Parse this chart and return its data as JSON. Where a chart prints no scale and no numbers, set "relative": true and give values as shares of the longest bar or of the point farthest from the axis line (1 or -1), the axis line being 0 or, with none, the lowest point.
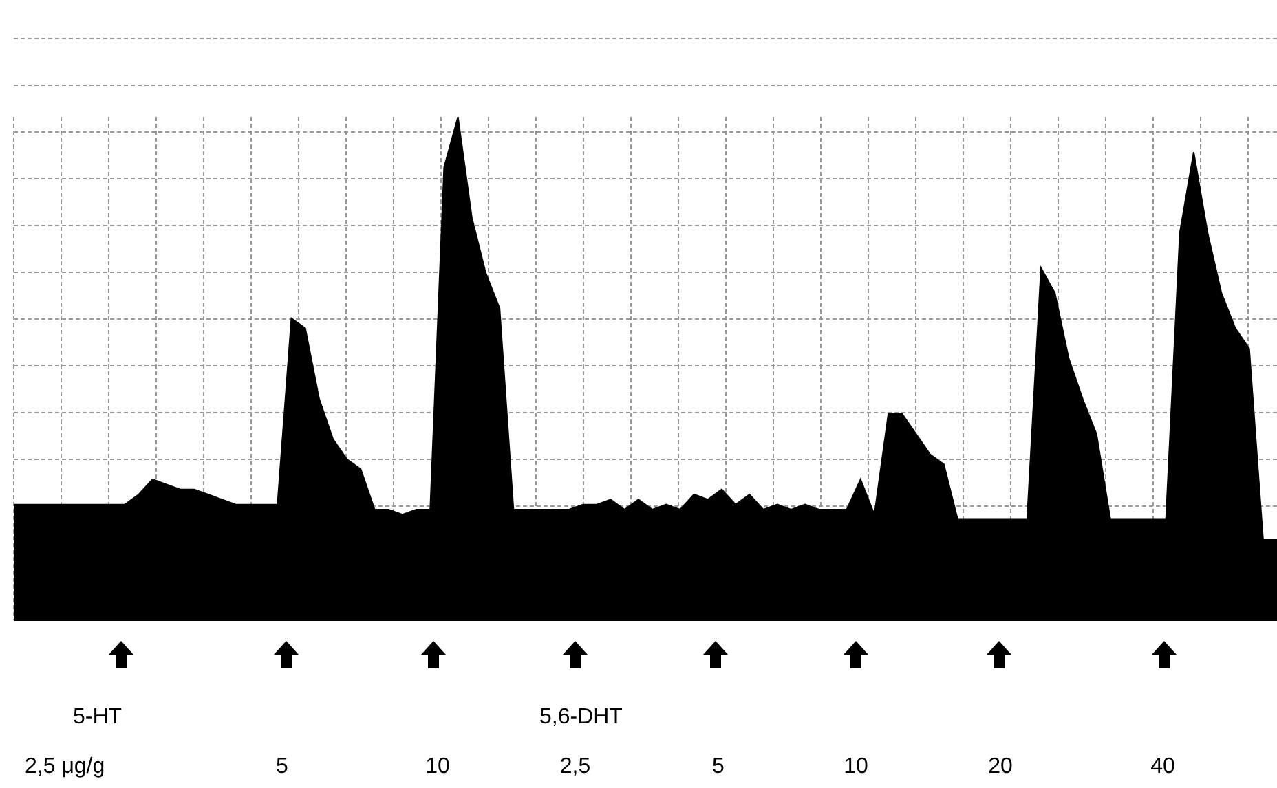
{
  "chart_data": {
    "type": "area",
    "relative": true,
    "grid": true,
    "color": "#000000",
    "categories": [
      null,
      null,
      null,
      null,
      null,
      null,
      null,
      null,
      null,
      null,
      null,
      null,
      null,
      null,
      null,
      null,
      null,
      null,
      null,
      null,
      null,
      null,
      null,
      null,
      null,
      null,
      null,
      null,
      null,
      null,
      null,
      null,
      null,
      null,
      null,
      null,
      null,
      null,
      null,
      null,
      null,
      null,
      null,
      null,
      null,
      null,
      null,
      null,
      null,
      null,
      null,
      null,
      null,
      null,
      null,
      null,
      null,
      null,
      null,
      null,
      null,
      null,
      null,
      null,
      null,
      null,
      null,
      null,
      null,
      null,
      null,
      null,
      null,
      null,
      null,
      null,
      null,
      null,
      null,
      null,
      null,
      null,
      null,
      null,
      null,
      null,
      null,
      null,
      null,
      null,
      null,
      null
    ],
    "values": [
      0.23,
      0.23,
      0.23,
      0.23,
      0.23,
      0.23,
      0.23,
      0.23,
      0.23,
      0.25,
      0.28,
      0.27,
      0.26,
      0.26,
      0.25,
      0.24,
      0.23,
      0.23,
      0.23,
      0.23,
      0.6,
      0.58,
      0.44,
      0.36,
      0.32,
      0.3,
      0.22,
      0.22,
      0.21,
      0.22,
      0.22,
      0.9,
      1,
      0.8,
      0.69,
      0.62,
      0.22,
      0.22,
      0.22,
      0.22,
      0.22,
      0.23,
      0.23,
      0.24,
      0.22,
      0.24,
      0.22,
      0.23,
      0.22,
      0.25,
      0.24,
      0.26,
      0.23,
      0.25,
      0.22,
      0.23,
      0.22,
      0.23,
      0.22,
      0.22,
      0.22,
      0.28,
      0.21,
      0.41,
      0.41,
      0.37,
      0.33,
      0.31,
      0.2,
      0.2,
      0.2,
      0.2,
      0.2,
      0.2,
      0.7,
      0.65,
      0.52,
      0.44,
      0.37,
      0.2,
      0.2,
      0.2,
      0.2,
      0.2,
      0.77,
      0.93,
      0.77,
      0.65,
      0.58,
      0.54,
      0.16,
      0.16
    ],
    "annotations": [
      "5-HT",
      "5,6-DHT",
      "2,5 μg/g",
      "5",
      "10",
      "2,5",
      "5",
      "10",
      "20",
      "40"
    ]
  }
}
